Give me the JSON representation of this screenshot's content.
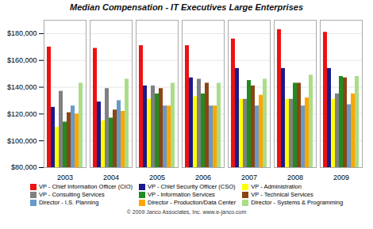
{
  "chart_data": {
    "type": "bar",
    "title": "Median Compensation - IT Executives Large Enterprises",
    "categories": [
      "2003",
      "2004",
      "2005",
      "2006",
      "2007",
      "2008",
      "2009"
    ],
    "series": [
      {
        "name": "VP - Chief Information Officer (CIO)",
        "color": "#EE1111",
        "values": [
          170000,
          169000,
          171000,
          171000,
          176000,
          183000,
          181000
        ]
      },
      {
        "name": "VP - Chief Security Officer (CSO)",
        "color": "#1A1A8C",
        "values": [
          125000,
          129000,
          141000,
          147000,
          154000,
          154000,
          154000
        ]
      },
      {
        "name": "VP - Administration",
        "color": "#FFFF00",
        "values": [
          110000,
          115000,
          131000,
          133000,
          131000,
          131000,
          131000
        ]
      },
      {
        "name": "VP - Consulting Services",
        "color": "#808080",
        "values": [
          137000,
          139000,
          141000,
          146000,
          131000,
          131000,
          135000
        ]
      },
      {
        "name": "VP - Information Services",
        "color": "#228B22",
        "values": [
          114000,
          117000,
          135000,
          135000,
          145000,
          143000,
          148000
        ]
      },
      {
        "name": "VP - Technical Services",
        "color": "#8B4513",
        "values": [
          121000,
          123000,
          139000,
          143000,
          141000,
          143000,
          147000
        ]
      },
      {
        "name": "Director - I.S. Planning",
        "color": "#6699CC",
        "values": [
          126000,
          130000,
          126000,
          126000,
          126000,
          126000,
          127000
        ]
      },
      {
        "name": "Director - Production/Data Center",
        "color": "#FFA500",
        "values": [
          120000,
          122000,
          126000,
          126000,
          134000,
          132000,
          135000
        ]
      },
      {
        "name": "Director - Systems & Programming",
        "color": "#AADD88",
        "values": [
          143000,
          146000,
          143000,
          143000,
          146000,
          149000,
          148000
        ]
      }
    ],
    "ylim": [
      80000,
      190000
    ],
    "yticks": [
      {
        "value": 80000,
        "label": "$80,000"
      },
      {
        "value": 100000,
        "label": "$100,000"
      },
      {
        "value": 120000,
        "label": "$120,000"
      },
      {
        "value": 140000,
        "label": "$140,000"
      },
      {
        "value": 160000,
        "label": "$160,000"
      },
      {
        "value": 180000,
        "label": "$180,000"
      }
    ],
    "grid": true,
    "legend": "bottom",
    "annotations": [
      "© 2009 Janco Associates, Inc. www.e-janco.com"
    ]
  }
}
